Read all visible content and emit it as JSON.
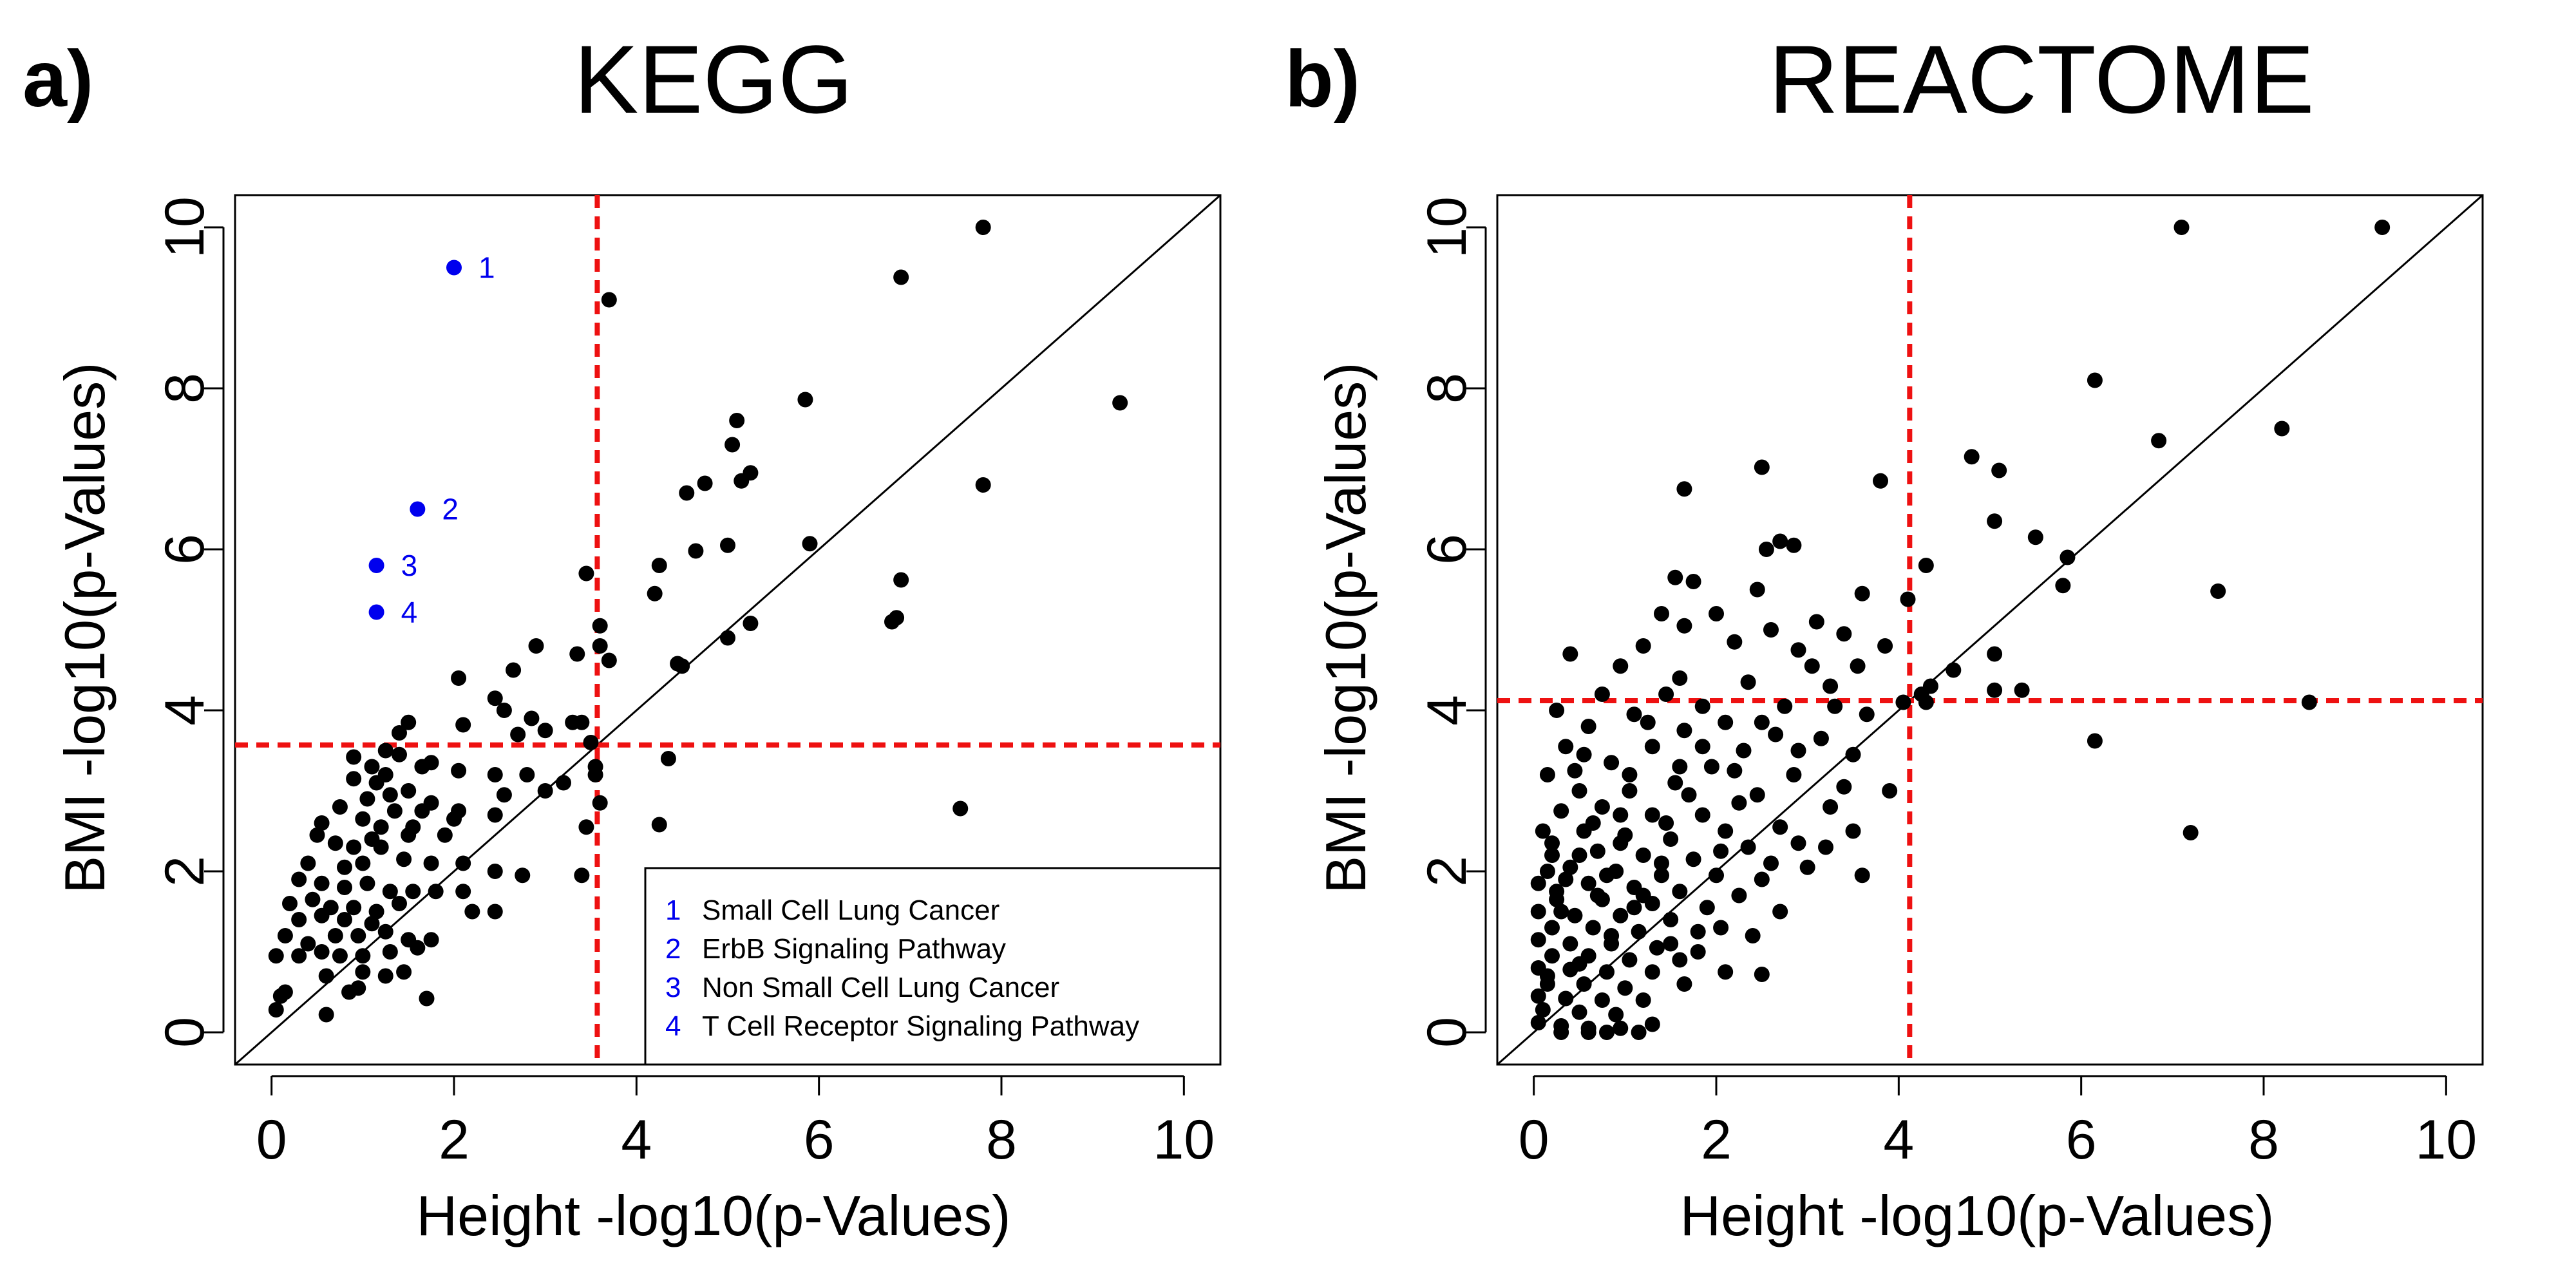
{
  "figure": {
    "panels": [
      {
        "letter": "a)",
        "title": "KEGG",
        "xlabel": "Height -log10(p-Values)",
        "ylabel": "BMI -log10(p-Values)",
        "thresholds": {
          "x": 3.57,
          "y": 3.57
        },
        "legend": [
          {
            "num": "1",
            "text": "Small Cell Lung Cancer"
          },
          {
            "num": "2",
            "text": "ErbB Signaling Pathway"
          },
          {
            "num": "3",
            "text": "Non Small Cell Lung Cancer"
          },
          {
            "num": "4",
            "text": "T Cell Receptor Signaling Pathway"
          }
        ]
      },
      {
        "letter": "b)",
        "title": "REACTOME",
        "xlabel": "Height -log10(p-Values)",
        "ylabel": "BMI -log10(p-Values)",
        "thresholds": {
          "x": 4.12,
          "y": 4.12
        },
        "legend": []
      }
    ]
  },
  "colors": {
    "points": "#000000",
    "highlight": "#0000ee",
    "threshold": "#ee1111",
    "diagonal": "#000000"
  },
  "chart_data": [
    {
      "type": "scatter",
      "title": "KEGG",
      "xlabel": "Height -log10(p-Values)",
      "ylabel": "BMI -log10(p-Values)",
      "xlim": [
        -0.4,
        10.4
      ],
      "ylim": [
        -0.4,
        10.4
      ],
      "xticks": [
        0,
        2,
        4,
        6,
        8,
        10
      ],
      "yticks": [
        0,
        2,
        4,
        6,
        8,
        10
      ],
      "diagonal": true,
      "threshold_lines": {
        "x": 3.57,
        "y": 3.57
      },
      "highlighted": [
        {
          "label": "1",
          "x": 2.0,
          "y": 9.5
        },
        {
          "label": "2",
          "x": 1.6,
          "y": 6.5
        },
        {
          "label": "3",
          "x": 1.15,
          "y": 5.8
        },
        {
          "label": "4",
          "x": 1.15,
          "y": 5.22
        }
      ],
      "points": [
        [
          7.8,
          10.0
        ],
        [
          3.7,
          9.1
        ],
        [
          6.9,
          9.38
        ],
        [
          9.3,
          7.82
        ],
        [
          5.85,
          7.86
        ],
        [
          7.8,
          6.8
        ],
        [
          5.1,
          7.6
        ],
        [
          5.05,
          7.3
        ],
        [
          5.25,
          6.95
        ],
        [
          5.15,
          6.85
        ],
        [
          4.75,
          6.82
        ],
        [
          4.55,
          6.7
        ],
        [
          5.9,
          6.07
        ],
        [
          5.0,
          6.05
        ],
        [
          4.65,
          5.98
        ],
        [
          4.25,
          5.8
        ],
        [
          3.45,
          5.7
        ],
        [
          6.9,
          5.62
        ],
        [
          6.85,
          5.15
        ],
        [
          6.8,
          5.1
        ],
        [
          5.25,
          5.08
        ],
        [
          4.2,
          5.45
        ],
        [
          3.6,
          5.05
        ],
        [
          5.0,
          4.9
        ],
        [
          3.6,
          4.8
        ],
        [
          2.9,
          4.8
        ],
        [
          3.35,
          4.7
        ],
        [
          3.7,
          4.62
        ],
        [
          2.65,
          4.5
        ],
        [
          4.45,
          4.58
        ],
        [
          4.5,
          4.55
        ],
        [
          2.05,
          4.4
        ],
        [
          2.45,
          4.15
        ],
        [
          2.55,
          4.0
        ],
        [
          3.3,
          3.85
        ],
        [
          3.4,
          3.85
        ],
        [
          2.85,
          3.9
        ],
        [
          2.1,
          3.82
        ],
        [
          1.5,
          3.85
        ],
        [
          1.4,
          3.72
        ],
        [
          2.7,
          3.7
        ],
        [
          3.0,
          3.75
        ],
        [
          3.5,
          3.6
        ],
        [
          1.25,
          3.5
        ],
        [
          1.4,
          3.45
        ],
        [
          3.55,
          3.3
        ],
        [
          4.35,
          3.4
        ],
        [
          1.65,
          3.3
        ],
        [
          1.75,
          3.35
        ],
        [
          2.05,
          3.25
        ],
        [
          2.45,
          3.2
        ],
        [
          2.8,
          3.2
        ],
        [
          3.2,
          3.1
        ],
        [
          3.55,
          3.2
        ],
        [
          0.9,
          3.42
        ],
        [
          1.1,
          3.3
        ],
        [
          1.25,
          3.2
        ],
        [
          1.15,
          3.1
        ],
        [
          1.05,
          2.9
        ],
        [
          1.3,
          2.95
        ],
        [
          0.9,
          3.15
        ],
        [
          1.5,
          3.0
        ],
        [
          1.75,
          2.85
        ],
        [
          2.55,
          2.95
        ],
        [
          3.0,
          3.0
        ],
        [
          2.05,
          2.75
        ],
        [
          2.45,
          2.7
        ],
        [
          3.6,
          2.85
        ],
        [
          2.0,
          2.65
        ],
        [
          1.65,
          2.75
        ],
        [
          1.35,
          2.75
        ],
        [
          1.0,
          2.65
        ],
        [
          0.75,
          2.8
        ],
        [
          0.55,
          2.6
        ],
        [
          1.2,
          2.55
        ],
        [
          1.55,
          2.55
        ],
        [
          1.9,
          2.45
        ],
        [
          1.5,
          2.45
        ],
        [
          7.55,
          2.78
        ],
        [
          4.25,
          2.58
        ],
        [
          3.45,
          2.55
        ],
        [
          1.1,
          2.4
        ],
        [
          0.7,
          2.35
        ],
        [
          0.9,
          2.3
        ],
        [
          0.5,
          2.45
        ],
        [
          1.2,
          2.3
        ],
        [
          1.45,
          2.15
        ],
        [
          1.75,
          2.1
        ],
        [
          2.1,
          2.1
        ],
        [
          2.45,
          2.0
        ],
        [
          2.75,
          1.95
        ],
        [
          3.4,
          1.95
        ],
        [
          1.0,
          2.1
        ],
        [
          0.8,
          2.05
        ],
        [
          0.4,
          2.1
        ],
        [
          0.3,
          1.9
        ],
        [
          0.55,
          1.85
        ],
        [
          0.8,
          1.8
        ],
        [
          1.05,
          1.85
        ],
        [
          1.3,
          1.75
        ],
        [
          1.55,
          1.75
        ],
        [
          1.8,
          1.75
        ],
        [
          2.1,
          1.75
        ],
        [
          2.2,
          1.5
        ],
        [
          2.45,
          1.5
        ],
        [
          0.2,
          1.6
        ],
        [
          0.45,
          1.65
        ],
        [
          0.65,
          1.55
        ],
        [
          0.9,
          1.55
        ],
        [
          1.15,
          1.5
        ],
        [
          1.4,
          1.6
        ],
        [
          1.1,
          1.35
        ],
        [
          0.8,
          1.4
        ],
        [
          0.55,
          1.45
        ],
        [
          0.3,
          1.4
        ],
        [
          0.15,
          1.2
        ],
        [
          0.4,
          1.1
        ],
        [
          0.7,
          1.2
        ],
        [
          0.95,
          1.2
        ],
        [
          1.25,
          1.25
        ],
        [
          1.5,
          1.15
        ],
        [
          1.75,
          1.15
        ],
        [
          0.3,
          0.95
        ],
        [
          0.55,
          1.0
        ],
        [
          0.75,
          0.95
        ],
        [
          1.0,
          0.95
        ],
        [
          1.3,
          1.0
        ],
        [
          1.6,
          1.05
        ],
        [
          0.05,
          0.95
        ],
        [
          0.6,
          0.7
        ],
        [
          0.95,
          0.55
        ],
        [
          1.25,
          0.7
        ],
        [
          0.15,
          0.5
        ],
        [
          0.85,
          0.5
        ],
        [
          1.45,
          0.75
        ],
        [
          1.7,
          0.42
        ],
        [
          0.05,
          0.28
        ],
        [
          0.6,
          0.22
        ],
        [
          0.1,
          0.45
        ],
        [
          1.0,
          0.75
        ]
      ]
    },
    {
      "type": "scatter",
      "title": "REACTOME",
      "xlabel": "Height -log10(p-Values)",
      "ylabel": "BMI -log10(p-Values)",
      "xlim": [
        -0.4,
        10.4
      ],
      "ylim": [
        -0.4,
        10.4
      ],
      "xticks": [
        0,
        2,
        4,
        6,
        8,
        10
      ],
      "yticks": [
        0,
        2,
        4,
        6,
        8,
        10
      ],
      "diagonal": true,
      "threshold_lines": {
        "x": 4.12,
        "y": 4.12
      },
      "highlighted": [],
      "points": [
        [
          7.1,
          10.0
        ],
        [
          9.3,
          10.0
        ],
        [
          6.15,
          8.1
        ],
        [
          8.2,
          7.5
        ],
        [
          6.85,
          7.35
        ],
        [
          4.8,
          7.15
        ],
        [
          2.5,
          7.02
        ],
        [
          5.1,
          6.98
        ],
        [
          3.8,
          6.85
        ],
        [
          1.65,
          6.75
        ],
        [
          5.05,
          6.35
        ],
        [
          5.5,
          6.15
        ],
        [
          2.7,
          6.1
        ],
        [
          2.85,
          6.05
        ],
        [
          2.55,
          6.0
        ],
        [
          5.85,
          5.9
        ],
        [
          4.3,
          5.8
        ],
        [
          1.55,
          5.65
        ],
        [
          1.75,
          5.6
        ],
        [
          5.8,
          5.55
        ],
        [
          7.5,
          5.48
        ],
        [
          2.45,
          5.5
        ],
        [
          3.6,
          5.45
        ],
        [
          4.1,
          5.38
        ],
        [
          1.4,
          5.2
        ],
        [
          2.0,
          5.2
        ],
        [
          3.1,
          5.1
        ],
        [
          1.65,
          5.05
        ],
        [
          2.6,
          5.0
        ],
        [
          3.4,
          4.95
        ],
        [
          1.2,
          4.8
        ],
        [
          0.4,
          4.7
        ],
        [
          2.2,
          4.85
        ],
        [
          3.85,
          4.8
        ],
        [
          5.05,
          4.7
        ],
        [
          2.9,
          4.75
        ],
        [
          0.95,
          4.55
        ],
        [
          4.6,
          4.5
        ],
        [
          3.55,
          4.55
        ],
        [
          1.6,
          4.4
        ],
        [
          2.35,
          4.35
        ],
        [
          3.25,
          4.3
        ],
        [
          4.35,
          4.3
        ],
        [
          5.35,
          4.25
        ],
        [
          5.05,
          4.25
        ],
        [
          0.75,
          4.2
        ],
        [
          1.45,
          4.2
        ],
        [
          4.3,
          4.1
        ],
        [
          8.5,
          4.1
        ],
        [
          1.85,
          4.05
        ],
        [
          2.75,
          4.05
        ],
        [
          3.65,
          3.95
        ],
        [
          0.25,
          4.0
        ],
        [
          1.1,
          3.95
        ],
        [
          2.1,
          3.85
        ],
        [
          6.15,
          3.62
        ],
        [
          0.6,
          3.8
        ],
        [
          1.65,
          3.75
        ],
        [
          2.65,
          3.7
        ],
        [
          3.15,
          3.65
        ],
        [
          0.35,
          3.55
        ],
        [
          1.3,
          3.55
        ],
        [
          2.3,
          3.5
        ],
        [
          3.5,
          3.45
        ],
        [
          0.85,
          3.35
        ],
        [
          1.95,
          3.3
        ],
        [
          2.85,
          3.2
        ],
        [
          0.15,
          3.2
        ],
        [
          1.55,
          3.1
        ],
        [
          3.9,
          3.0
        ],
        [
          0.5,
          3.0
        ],
        [
          1.05,
          3.0
        ],
        [
          2.45,
          2.95
        ],
        [
          3.25,
          2.8
        ],
        [
          0.3,
          2.75
        ],
        [
          0.75,
          2.8
        ],
        [
          1.3,
          2.7
        ],
        [
          1.85,
          2.7
        ],
        [
          2.1,
          2.5
        ],
        [
          2.7,
          2.55
        ],
        [
          3.5,
          2.5
        ],
        [
          0.1,
          2.5
        ],
        [
          0.55,
          2.5
        ],
        [
          1.0,
          2.45
        ],
        [
          1.5,
          2.4
        ],
        [
          7.2,
          2.48
        ],
        [
          2.35,
          2.3
        ],
        [
          3.2,
          2.3
        ],
        [
          0.2,
          2.2
        ],
        [
          0.7,
          2.25
        ],
        [
          1.2,
          2.2
        ],
        [
          1.75,
          2.15
        ],
        [
          2.6,
          2.1
        ],
        [
          3.0,
          2.05
        ],
        [
          0.4,
          2.05
        ],
        [
          0.9,
          2.0
        ],
        [
          1.4,
          1.95
        ],
        [
          2.0,
          1.95
        ],
        [
          3.6,
          1.95
        ],
        [
          0.05,
          1.85
        ],
        [
          0.6,
          1.85
        ],
        [
          1.1,
          1.8
        ],
        [
          1.6,
          1.75
        ],
        [
          2.25,
          1.7
        ],
        [
          0.25,
          1.65
        ],
        [
          0.75,
          1.65
        ],
        [
          1.3,
          1.6
        ],
        [
          1.9,
          1.55
        ],
        [
          2.7,
          1.5
        ],
        [
          0.05,
          1.5
        ],
        [
          0.45,
          1.45
        ],
        [
          0.95,
          1.45
        ],
        [
          1.5,
          1.4
        ],
        [
          0.2,
          1.3
        ],
        [
          0.65,
          1.3
        ],
        [
          1.15,
          1.25
        ],
        [
          1.8,
          1.25
        ],
        [
          2.4,
          1.2
        ],
        [
          0.05,
          1.15
        ],
        [
          0.4,
          1.1
        ],
        [
          0.85,
          1.1
        ],
        [
          1.35,
          1.05
        ],
        [
          0.2,
          0.95
        ],
        [
          0.6,
          0.95
        ],
        [
          1.05,
          0.9
        ],
        [
          1.6,
          0.9
        ],
        [
          0.05,
          0.8
        ],
        [
          0.4,
          0.78
        ],
        [
          0.8,
          0.75
        ],
        [
          2.1,
          0.75
        ],
        [
          2.5,
          0.72
        ],
        [
          0.15,
          0.6
        ],
        [
          0.55,
          0.6
        ],
        [
          1.0,
          0.55
        ],
        [
          1.65,
          0.6
        ],
        [
          0.05,
          0.45
        ],
        [
          0.35,
          0.42
        ],
        [
          0.75,
          0.4
        ],
        [
          1.2,
          0.4
        ],
        [
          0.1,
          0.28
        ],
        [
          0.5,
          0.25
        ],
        [
          0.9,
          0.22
        ],
        [
          0.05,
          0.12
        ],
        [
          0.3,
          0.08
        ],
        [
          0.6,
          0.05
        ],
        [
          0.3,
          0.0
        ],
        [
          0.6,
          0.0
        ],
        [
          0.95,
          0.05
        ],
        [
          1.3,
          0.1
        ],
        [
          0.15,
          2.0
        ],
        [
          0.35,
          1.9
        ],
        [
          0.8,
          1.95
        ],
        [
          1.2,
          1.7
        ],
        [
          0.5,
          2.2
        ],
        [
          0.95,
          2.35
        ],
        [
          1.45,
          2.6
        ],
        [
          0.65,
          2.6
        ],
        [
          1.7,
          2.95
        ],
        [
          0.2,
          2.35
        ],
        [
          1.05,
          3.2
        ],
        [
          1.85,
          3.55
        ],
        [
          2.2,
          3.25
        ],
        [
          0.45,
          3.25
        ],
        [
          1.25,
          3.85
        ],
        [
          2.5,
          3.85
        ],
        [
          0.85,
          1.2
        ],
        [
          1.5,
          1.1
        ],
        [
          0.3,
          1.5
        ],
        [
          0.7,
          1.7
        ],
        [
          1.1,
          1.55
        ],
        [
          1.4,
          2.1
        ],
        [
          2.05,
          2.25
        ],
        [
          2.5,
          1.9
        ],
        [
          0.95,
          2.7
        ],
        [
          1.6,
          3.3
        ],
        [
          0.55,
          3.45
        ],
        [
          0.15,
          0.7
        ],
        [
          0.5,
          0.85
        ],
        [
          1.3,
          0.75
        ],
        [
          1.8,
          1.0
        ],
        [
          2.25,
          2.85
        ],
        [
          2.9,
          3.5
        ],
        [
          3.3,
          4.05
        ],
        [
          3.05,
          4.55
        ],
        [
          4.05,
          4.1
        ],
        [
          4.25,
          4.2
        ],
        [
          0.8,
          0.0
        ],
        [
          1.15,
          0.0
        ],
        [
          2.05,
          1.3
        ],
        [
          2.9,
          2.35
        ],
        [
          3.4,
          3.05
        ],
        [
          0.25,
          1.75
        ]
      ]
    }
  ]
}
